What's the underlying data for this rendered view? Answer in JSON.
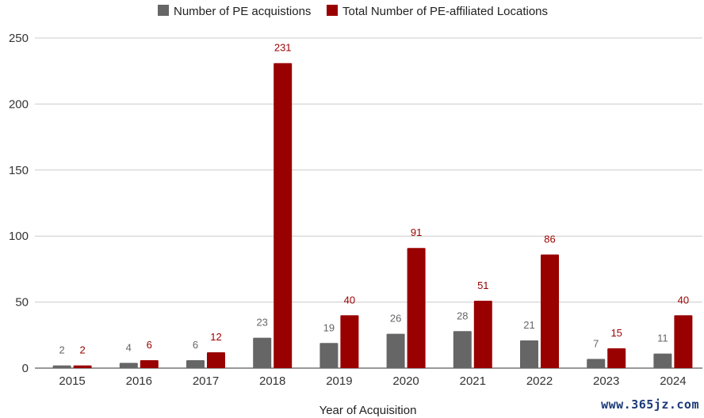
{
  "chart_data": {
    "type": "bar",
    "title": "",
    "xlabel": "Year of Acquisition",
    "ylabel": "",
    "ylim": [
      0,
      250
    ],
    "yticks": [
      0,
      50,
      100,
      150,
      200,
      250
    ],
    "categories": [
      "2015",
      "2016",
      "2017",
      "2018",
      "2019",
      "2020",
      "2021",
      "2022",
      "2023",
      "2024"
    ],
    "series": [
      {
        "name": "Number of PE acquistions",
        "color": "#666666",
        "values": [
          2,
          4,
          6,
          23,
          19,
          26,
          28,
          21,
          7,
          11
        ]
      },
      {
        "name": "Total Number of PE-affiliated Locations",
        "color": "#990000",
        "values": [
          2,
          6,
          12,
          231,
          40,
          91,
          51,
          86,
          15,
          40
        ]
      }
    ],
    "legend_position": "top",
    "grid": true
  },
  "watermark": "www.365jz.com"
}
